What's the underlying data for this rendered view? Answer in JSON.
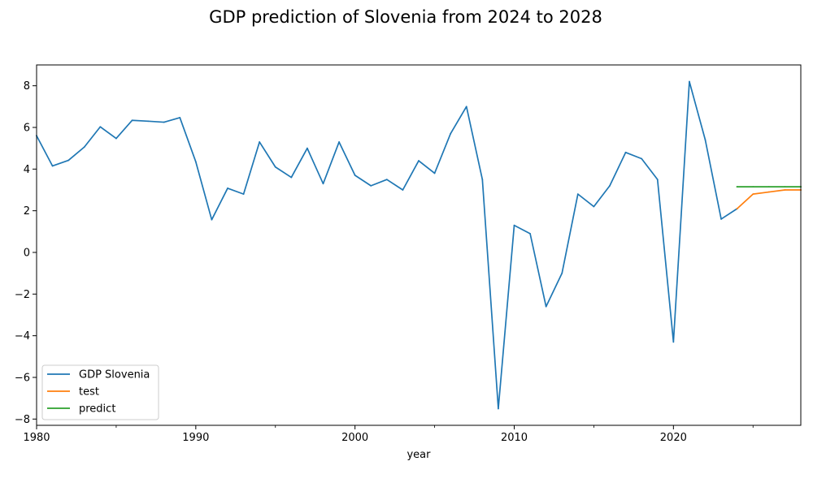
{
  "chart_data": {
    "type": "line",
    "title": "GDP prediction of Slovenia from 2024 to 2028",
    "xlabel": "year",
    "ylabel": "",
    "xlim": [
      1980,
      2028
    ],
    "ylim": [
      -8.3,
      9.0
    ],
    "xticks": [
      1980,
      1990,
      2000,
      2010,
      2020
    ],
    "yticks": [
      -8,
      -6,
      -4,
      -2,
      0,
      2,
      4,
      6,
      8
    ],
    "grid": false,
    "legend_position": "lower-left",
    "series": [
      {
        "name": "GDP Slovenia",
        "color": "#1f77b4",
        "x": [
          1980,
          1981,
          1982,
          1983,
          1984,
          1985,
          1986,
          1987,
          1988,
          1989,
          1990,
          1991,
          1992,
          1993,
          1994,
          1995,
          1996,
          1997,
          1998,
          1999,
          2000,
          2001,
          2002,
          2003,
          2004,
          2005,
          2006,
          2007,
          2008,
          2009,
          2010,
          2011,
          2012,
          2013,
          2014,
          2015,
          2016,
          2017,
          2018,
          2019,
          2020,
          2021,
          2022,
          2023,
          2024
        ],
        "values": [
          5.6,
          4.15,
          4.42,
          5.06,
          6.03,
          5.47,
          6.34,
          6.3,
          6.25,
          6.47,
          4.35,
          1.57,
          3.08,
          2.8,
          5.3,
          4.1,
          3.6,
          5.0,
          3.3,
          5.3,
          3.7,
          3.2,
          3.5,
          3.0,
          4.4,
          3.8,
          5.7,
          7.0,
          3.5,
          -7.5,
          1.3,
          0.9,
          -2.6,
          -1.0,
          2.8,
          2.2,
          3.2,
          4.8,
          4.5,
          3.5,
          -4.3,
          8.2,
          5.4,
          1.6,
          2.1
        ]
      },
      {
        "name": "test",
        "color": "#ff7f0e",
        "x": [
          2024,
          2025,
          2026,
          2027,
          2028
        ],
        "values": [
          2.1,
          2.8,
          2.9,
          3.0,
          3.0
        ]
      },
      {
        "name": "predict",
        "color": "#2ca02c",
        "x": [
          2024,
          2025,
          2026,
          2027,
          2028
        ],
        "values": [
          3.15,
          3.15,
          3.15,
          3.15,
          3.15
        ]
      }
    ]
  }
}
